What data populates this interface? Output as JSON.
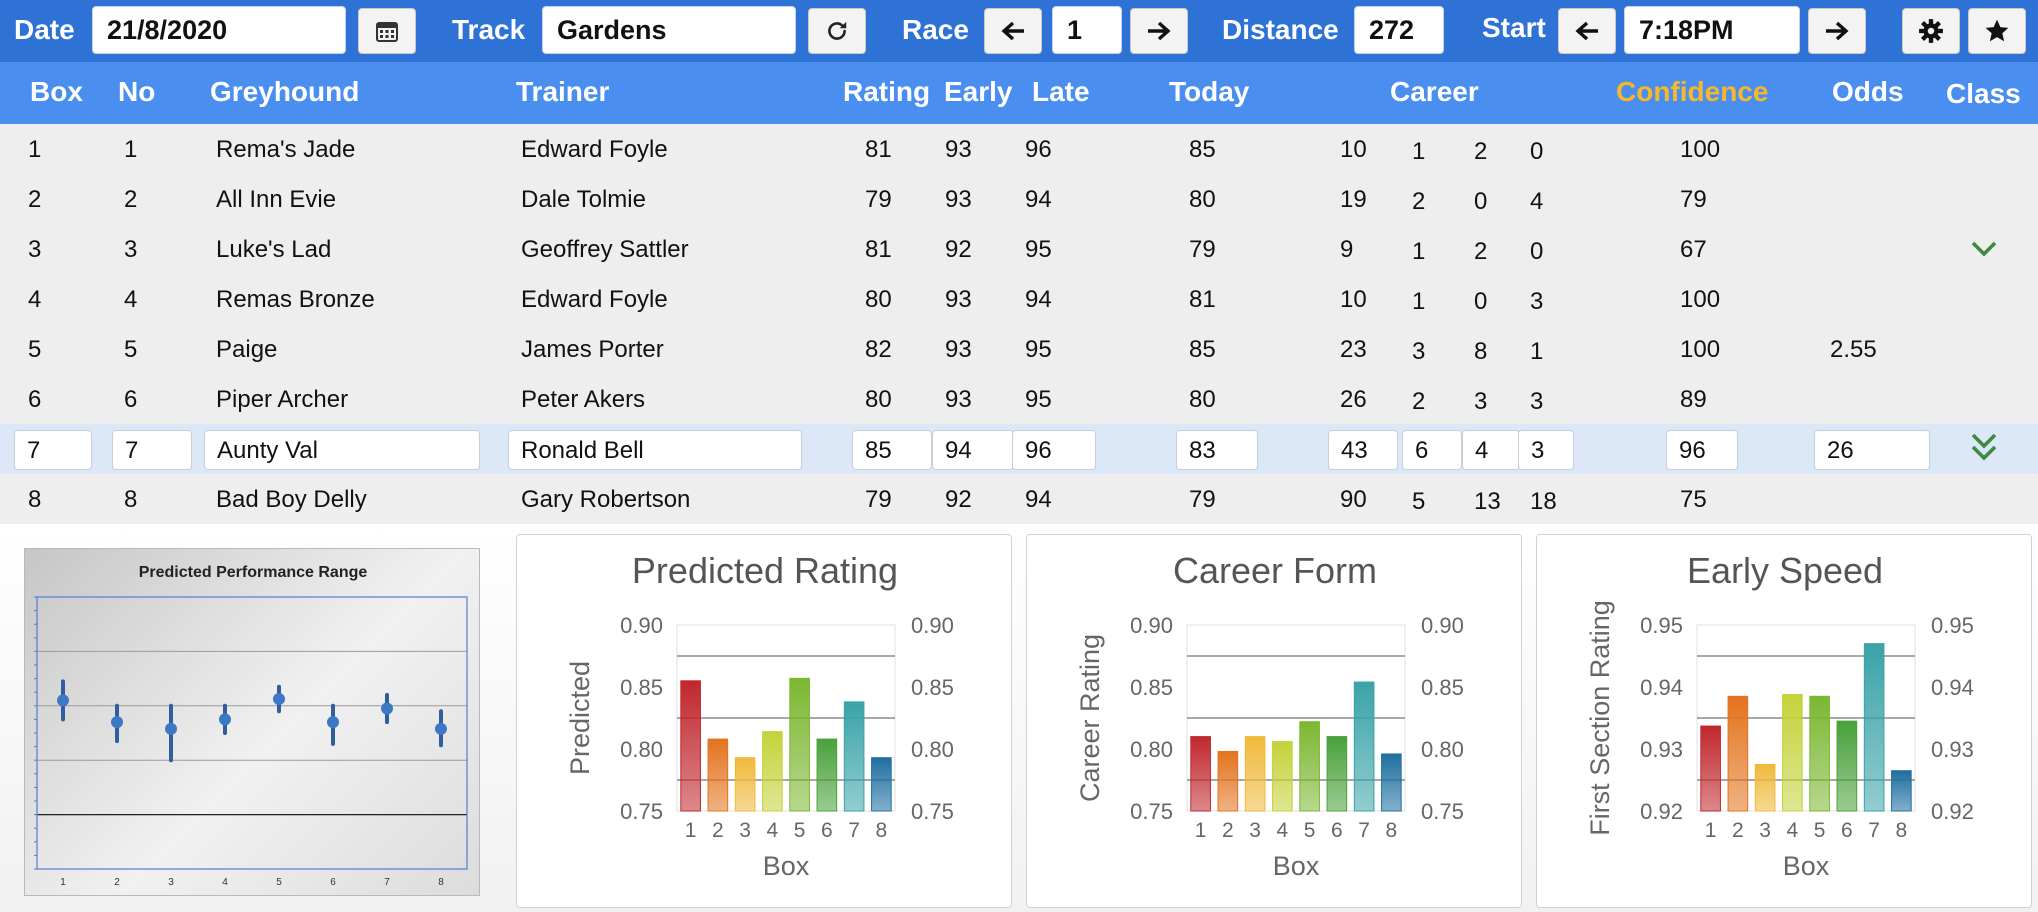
{
  "toolbar": {
    "date_label": "Date",
    "date_value": "21/8/2020",
    "calendar_icon": "calendar-icon",
    "track_label": "Track",
    "track_value": "Gardens",
    "refresh_icon": "refresh-icon",
    "race_label": "Race",
    "race_value": "1",
    "distance_label": "Distance",
    "distance_value": "272",
    "start_label": "Start",
    "start_value": "7:18PM",
    "prev_icon": "arrow-left-icon",
    "next_icon": "arrow-right-icon",
    "settings_icon": "gear-icon",
    "favorite_icon": "star-icon"
  },
  "columns": {
    "box": "Box",
    "no": "No",
    "greyhound": "Greyhound",
    "trainer": "Trainer",
    "rating": "Rating",
    "early": "Early",
    "late": "Late",
    "today": "Today",
    "career": "Career",
    "confidence": "Confidence",
    "odds": "Odds",
    "class": "Class"
  },
  "rows": [
    {
      "box": "1",
      "no": "1",
      "greyhound": "Rema's Jade",
      "trainer": "Edward Foyle",
      "rating": "81",
      "early": "93",
      "late": "96",
      "today": "85",
      "starts": "10",
      "c1": "1",
      "c2": "2",
      "c3": "0",
      "confidence": "100",
      "odds": "",
      "class_icon": ""
    },
    {
      "box": "2",
      "no": "2",
      "greyhound": "All Inn Evie",
      "trainer": "Dale Tolmie",
      "rating": "79",
      "early": "93",
      "late": "94",
      "today": "80",
      "starts": "19",
      "c1": "2",
      "c2": "0",
      "c3": "4",
      "confidence": "79",
      "odds": "",
      "class_icon": ""
    },
    {
      "box": "3",
      "no": "3",
      "greyhound": "Luke's Lad",
      "trainer": "Geoffrey Sattler",
      "rating": "81",
      "early": "92",
      "late": "95",
      "today": "79",
      "starts": "9",
      "c1": "1",
      "c2": "2",
      "c3": "0",
      "confidence": "67",
      "odds": "",
      "class_icon": "chevron-down-icon"
    },
    {
      "box": "4",
      "no": "4",
      "greyhound": "Remas Bronze",
      "trainer": "Edward Foyle",
      "rating": "80",
      "early": "93",
      "late": "94",
      "today": "81",
      "starts": "10",
      "c1": "1",
      "c2": "0",
      "c3": "3",
      "confidence": "100",
      "odds": "",
      "class_icon": ""
    },
    {
      "box": "5",
      "no": "5",
      "greyhound": "Paige",
      "trainer": "James Porter",
      "rating": "82",
      "early": "93",
      "late": "95",
      "today": "85",
      "starts": "23",
      "c1": "3",
      "c2": "8",
      "c3": "1",
      "confidence": "100",
      "odds": "2.55",
      "class_icon": ""
    },
    {
      "box": "6",
      "no": "6",
      "greyhound": "Piper Archer",
      "trainer": "Peter Akers",
      "rating": "80",
      "early": "93",
      "late": "95",
      "today": "80",
      "starts": "26",
      "c1": "2",
      "c2": "3",
      "c3": "3",
      "confidence": "89",
      "odds": "",
      "class_icon": ""
    },
    {
      "box": "7",
      "no": "7",
      "greyhound": "Aunty Val",
      "trainer": "Ronald Bell",
      "rating": "85",
      "early": "94",
      "late": "96",
      "today": "83",
      "starts": "43",
      "c1": "6",
      "c2": "4",
      "c3": "3",
      "confidence": "96",
      "odds": "26",
      "class_icon": "double-chevron-down-icon"
    },
    {
      "box": "8",
      "no": "8",
      "greyhound": "Bad Boy Delly",
      "trainer": "Gary Robertson",
      "rating": "79",
      "early": "92",
      "late": "94",
      "today": "79",
      "starts": "90",
      "c1": "5",
      "c2": "13",
      "c3": "18",
      "confidence": "75",
      "odds": "",
      "class_icon": ""
    }
  ],
  "selected_row": 6,
  "colors": {
    "toolbar": "#2f72d6",
    "header": "#4a8fef",
    "confidence_header": "#f6b829",
    "row_bg": "#eeeeee",
    "selected_row_bg": "#dce8f8",
    "class_icon": "#3f8a3c",
    "bar_palette": [
      "#c0272d",
      "#e3731f",
      "#f0b93b",
      "#c4d23a",
      "#7bb731",
      "#49a13a",
      "#3aa3a8",
      "#1f6fa0"
    ]
  },
  "chart_data": [
    {
      "type": "scatter",
      "title": "Predicted Performance Range",
      "x": [
        1,
        2,
        3,
        4,
        5,
        6,
        7,
        8
      ],
      "x_tick_labels": [
        "1",
        "2",
        "3",
        "4",
        "5",
        "6",
        "7",
        "8"
      ],
      "y_center": [
        0.62,
        0.54,
        0.515,
        0.55,
        0.625,
        0.54,
        0.59,
        0.515
      ],
      "y_low": [
        0.55,
        0.47,
        0.4,
        0.5,
        0.58,
        0.46,
        0.54,
        0.455
      ],
      "y_high": [
        0.69,
        0.6,
        0.6,
        0.6,
        0.67,
        0.6,
        0.64,
        0.58
      ],
      "ylim": [
        0,
        1
      ],
      "grid": true,
      "legend": "none"
    },
    {
      "type": "bar",
      "title": "Predicted Rating",
      "categories": [
        "1",
        "2",
        "3",
        "4",
        "5",
        "6",
        "7",
        "8"
      ],
      "values": [
        0.855,
        0.808,
        0.793,
        0.814,
        0.857,
        0.808,
        0.838,
        0.793
      ],
      "xlabel": "Box",
      "ylabel": "Predicted",
      "ylim": [
        0.75,
        0.9
      ],
      "y_ticks": [
        "0.90",
        "0.85",
        "0.80",
        "0.75"
      ],
      "grid": true,
      "legend": "none"
    },
    {
      "type": "bar",
      "title": "Career Form",
      "categories": [
        "1",
        "2",
        "3",
        "4",
        "5",
        "6",
        "7",
        "8"
      ],
      "values": [
        0.81,
        0.798,
        0.81,
        0.806,
        0.822,
        0.81,
        0.854,
        0.796
      ],
      "xlabel": "Box",
      "ylabel": "Career Rating",
      "ylim": [
        0.75,
        0.9
      ],
      "y_ticks": [
        "0.90",
        "0.85",
        "0.80",
        "0.75"
      ],
      "grid": true,
      "legend": "none"
    },
    {
      "type": "bar",
      "title": "Early Speed",
      "categories": [
        "1",
        "2",
        "3",
        "4",
        "5",
        "6",
        "7",
        "8"
      ],
      "values": [
        0.9337,
        0.9385,
        0.9275,
        0.9388,
        0.9385,
        0.9345,
        0.947,
        0.9265
      ],
      "xlabel": "Box",
      "ylabel": "First Section Rating",
      "ylim": [
        0.92,
        0.95
      ],
      "y_ticks": [
        "0.95",
        "0.94",
        "0.93",
        "0.92"
      ],
      "grid": true,
      "legend": "none"
    }
  ]
}
